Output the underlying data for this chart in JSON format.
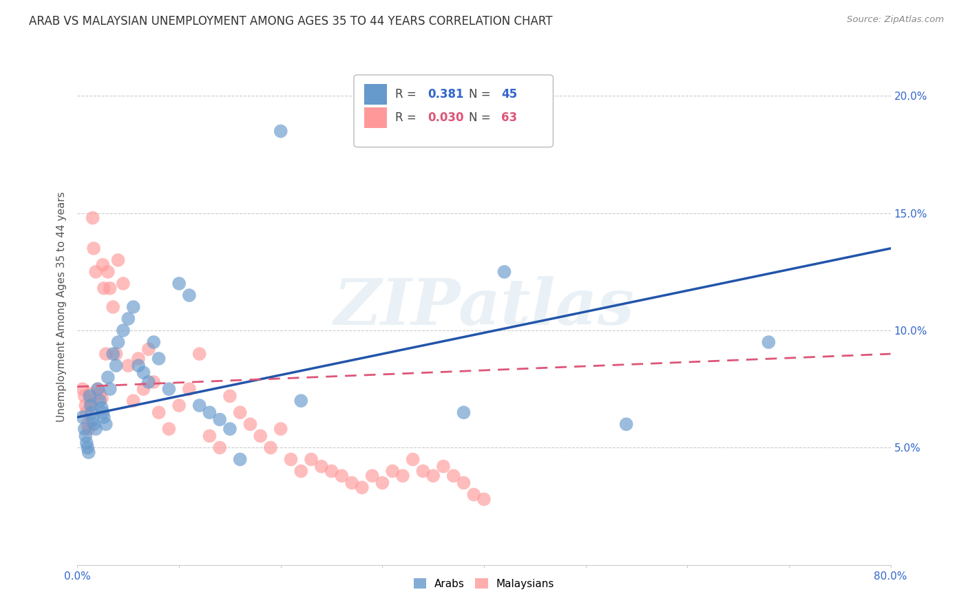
{
  "title": "ARAB VS MALAYSIAN UNEMPLOYMENT AMONG AGES 35 TO 44 YEARS CORRELATION CHART",
  "source": "Source: ZipAtlas.com",
  "ylabel": "Unemployment Among Ages 35 to 44 years",
  "xlim": [
    0.0,
    0.8
  ],
  "ylim": [
    0.0,
    0.22
  ],
  "xticks": [
    0.0,
    0.1,
    0.2,
    0.3,
    0.4,
    0.5,
    0.6,
    0.7,
    0.8
  ],
  "xtick_labels_show": [
    "0.0%",
    "",
    "",
    "",
    "",
    "",
    "",
    "",
    "80.0%"
  ],
  "yticks": [
    0.0,
    0.05,
    0.1,
    0.15,
    0.2
  ],
  "ytick_labels_left": [
    "",
    "",
    "",
    "",
    ""
  ],
  "ytick_labels_right": [
    "",
    "5.0%",
    "10.0%",
    "15.0%",
    "20.0%"
  ],
  "arab_R": 0.381,
  "arab_N": 45,
  "malay_R": 0.03,
  "malay_N": 63,
  "arab_color": "#6699cc",
  "malay_color": "#ff9999",
  "arab_line_color": "#2255aa",
  "malay_line_color": "#dd5577",
  "background_color": "#ffffff",
  "grid_color": "#cccccc",
  "watermark": "ZIPatlas",
  "legend_label_arab": "Arabs",
  "legend_label_malay": "Malaysians",
  "arab_x": [
    0.005,
    0.007,
    0.008,
    0.009,
    0.01,
    0.011,
    0.012,
    0.013,
    0.014,
    0.015,
    0.016,
    0.018,
    0.02,
    0.022,
    0.024,
    0.025,
    0.026,
    0.028,
    0.03,
    0.032,
    0.035,
    0.038,
    0.04,
    0.045,
    0.05,
    0.055,
    0.06,
    0.065,
    0.07,
    0.075,
    0.08,
    0.09,
    0.1,
    0.11,
    0.12,
    0.13,
    0.14,
    0.15,
    0.16,
    0.2,
    0.22,
    0.38,
    0.42,
    0.54,
    0.68
  ],
  "arab_y": [
    0.063,
    0.058,
    0.055,
    0.052,
    0.05,
    0.048,
    0.072,
    0.068,
    0.065,
    0.062,
    0.06,
    0.058,
    0.075,
    0.07,
    0.067,
    0.065,
    0.063,
    0.06,
    0.08,
    0.075,
    0.09,
    0.085,
    0.095,
    0.1,
    0.105,
    0.11,
    0.085,
    0.082,
    0.078,
    0.095,
    0.088,
    0.075,
    0.12,
    0.115,
    0.068,
    0.065,
    0.062,
    0.058,
    0.045,
    0.185,
    0.07,
    0.065,
    0.125,
    0.06,
    0.095
  ],
  "malay_x": [
    0.005,
    0.007,
    0.008,
    0.009,
    0.01,
    0.011,
    0.012,
    0.013,
    0.014,
    0.015,
    0.016,
    0.018,
    0.02,
    0.022,
    0.024,
    0.025,
    0.026,
    0.028,
    0.03,
    0.032,
    0.035,
    0.038,
    0.04,
    0.045,
    0.05,
    0.055,
    0.06,
    0.065,
    0.07,
    0.075,
    0.08,
    0.09,
    0.1,
    0.11,
    0.12,
    0.13,
    0.14,
    0.15,
    0.16,
    0.17,
    0.18,
    0.19,
    0.2,
    0.21,
    0.22,
    0.23,
    0.24,
    0.25,
    0.26,
    0.27,
    0.28,
    0.29,
    0.3,
    0.31,
    0.32,
    0.33,
    0.34,
    0.35,
    0.36,
    0.37,
    0.38,
    0.39,
    0.4
  ],
  "malay_y": [
    0.075,
    0.072,
    0.068,
    0.065,
    0.06,
    0.058,
    0.073,
    0.07,
    0.068,
    0.148,
    0.135,
    0.125,
    0.075,
    0.073,
    0.071,
    0.128,
    0.118,
    0.09,
    0.125,
    0.118,
    0.11,
    0.09,
    0.13,
    0.12,
    0.085,
    0.07,
    0.088,
    0.075,
    0.092,
    0.078,
    0.065,
    0.058,
    0.068,
    0.075,
    0.09,
    0.055,
    0.05,
    0.072,
    0.065,
    0.06,
    0.055,
    0.05,
    0.058,
    0.045,
    0.04,
    0.045,
    0.042,
    0.04,
    0.038,
    0.035,
    0.033,
    0.038,
    0.035,
    0.04,
    0.038,
    0.045,
    0.04,
    0.038,
    0.042,
    0.038,
    0.035,
    0.03,
    0.028
  ]
}
